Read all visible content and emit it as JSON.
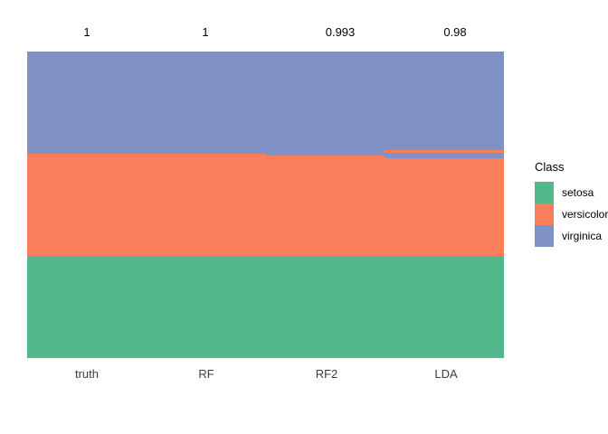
{
  "figure": {
    "background_color": "#FFFFFF"
  },
  "chart_data": {
    "type": "bar",
    "subtype": "stacked-proportion-columns",
    "title": "",
    "xlabel": "",
    "ylabel": "",
    "ylim": [
      0,
      1
    ],
    "grid": false,
    "categories": [
      "truth",
      "RF",
      "RF2",
      "LDA"
    ],
    "accuracy_labels": [
      "1",
      "1",
      "0.993",
      "0.98"
    ],
    "classes": [
      {
        "name": "setosa",
        "color": "#53B98C"
      },
      {
        "name": "versicolor",
        "color": "#F97F5C"
      },
      {
        "name": "virginica",
        "color": "#8091C5"
      }
    ],
    "columns": [
      {
        "label": "truth",
        "accuracy": "1",
        "segments": [
          {
            "class": "virginica",
            "fraction": 0.3333
          },
          {
            "class": "versicolor",
            "fraction": 0.3333
          },
          {
            "class": "setosa",
            "fraction": 0.3334
          }
        ]
      },
      {
        "label": "RF",
        "accuracy": "1",
        "segments": [
          {
            "class": "virginica",
            "fraction": 0.3333
          },
          {
            "class": "versicolor",
            "fraction": 0.3333
          },
          {
            "class": "setosa",
            "fraction": 0.3334
          }
        ]
      },
      {
        "label": "RF2",
        "accuracy": "0.993",
        "segments": [
          {
            "class": "virginica",
            "fraction": 0.3407
          },
          {
            "class": "versicolor",
            "fraction": 0.326
          },
          {
            "class": "setosa",
            "fraction": 0.3333
          }
        ]
      },
      {
        "label": "LDA",
        "accuracy": "0.98",
        "segments": [
          {
            "class": "virginica",
            "fraction": 0.3215
          },
          {
            "class": "versicolor",
            "fraction": 0.0089
          },
          {
            "class": "virginica",
            "fraction": 0.0177
          },
          {
            "class": "versicolor",
            "fraction": 0.3186
          },
          {
            "class": "setosa",
            "fraction": 0.3333
          }
        ]
      }
    ],
    "legend": {
      "title": "Class",
      "position": "right",
      "entries": [
        "setosa",
        "versicolor",
        "virginica"
      ]
    }
  }
}
